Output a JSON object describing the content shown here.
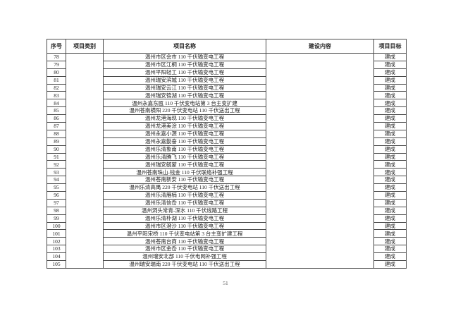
{
  "page": {
    "number": "51"
  },
  "table": {
    "headers": [
      "序号",
      "项目类别",
      "项目名称",
      "建设内容",
      "项目目标"
    ],
    "category_value": "",
    "content_value": "",
    "rows": [
      {
        "no": "78",
        "name": "温州市区会市 110 千伏输变电工程",
        "goal": "建成"
      },
      {
        "no": "79",
        "name": "温州市区江桐 110 千伏输变电工程",
        "goal": "建成"
      },
      {
        "no": "80",
        "name": "温州平阳轻工 110 千伏输变电工程",
        "goal": "建成"
      },
      {
        "no": "81",
        "name": "温州瑞安滨城 110 千伏输变电工程",
        "goal": "建成"
      },
      {
        "no": "82",
        "name": "温州瑞安云江 110 千伏输变电工程",
        "goal": "建成"
      },
      {
        "no": "83",
        "name": "温州瑞安锦湖 110 千伏输变电工程",
        "goal": "建成"
      },
      {
        "no": "84",
        "name": "温州永嘉东瓯 110 千伏变电站第 3 台主变扩建",
        "goal": "建成"
      },
      {
        "no": "85",
        "name": "温州苍南横阳 220 千伏变电站 110 千伏送出工程",
        "goal": "建成"
      },
      {
        "no": "86",
        "name": "温州龙港海现 110 千伏输变电工程",
        "goal": "建成"
      },
      {
        "no": "87",
        "name": "温州龙港美涂 110 千伏输变电工程",
        "goal": "建成"
      },
      {
        "no": "88",
        "name": "温州永嘉小源 110 千伏输变电工程",
        "goal": "建成"
      },
      {
        "no": "89",
        "name": "温州永嘉勤奋 110 千伏输变电工程",
        "goal": "建成"
      },
      {
        "no": "90",
        "name": "温州乐清象南 110 千伏输变电工程",
        "goal": "建成"
      },
      {
        "no": "91",
        "name": "温州乐清腾飞 110 千伏输变电工程",
        "goal": "建成"
      },
      {
        "no": "92",
        "name": "温州瑞安毓蒙 110 千伏输变电工程",
        "goal": "建成"
      },
      {
        "no": "93",
        "name": "温州苍南珠山-钱金 110 千伏联络补强工程",
        "goal": "建成"
      },
      {
        "no": "94",
        "name": "温州苍南新安 110 千伏输变电工程",
        "goal": "建成"
      },
      {
        "no": "95",
        "name": "温州乐清高禺 220 千伏变电站 110 千伏送出工程",
        "goal": "建成"
      },
      {
        "no": "96",
        "name": "温州乐清雁楠 110 千伏输变电工程",
        "goal": "建成"
      },
      {
        "no": "97",
        "name": "温州乐清信岙 110 千伏输变电工程",
        "goal": "建成"
      },
      {
        "no": "98",
        "name": "温州洞头常青-深水 110 千伏线路工程",
        "goal": "建成"
      },
      {
        "no": "99",
        "name": "温州乐清朴湖 110 千伏输变电工程",
        "goal": "建成"
      },
      {
        "no": "100",
        "name": "温州市区澄沙 110 千伏输变电工程",
        "goal": "建成"
      },
      {
        "no": "101",
        "name": "温州平阳宋桥 110 千伏变电站第 3 台主变扩建工程",
        "goal": "建成"
      },
      {
        "no": "102",
        "name": "温州苍南台商 110 千伏输变电工程",
        "goal": "建成"
      },
      {
        "no": "103",
        "name": "温州市区金岙 110 千伏输变电工程",
        "goal": "建成"
      },
      {
        "no": "104",
        "name": "温州瑞安北部 110 千伏电网补强工程",
        "goal": "建成"
      },
      {
        "no": "105",
        "name": "温州瑞安瑞南 220 千伏变电站 110 千伏送出工程",
        "goal": "建成"
      }
    ]
  }
}
